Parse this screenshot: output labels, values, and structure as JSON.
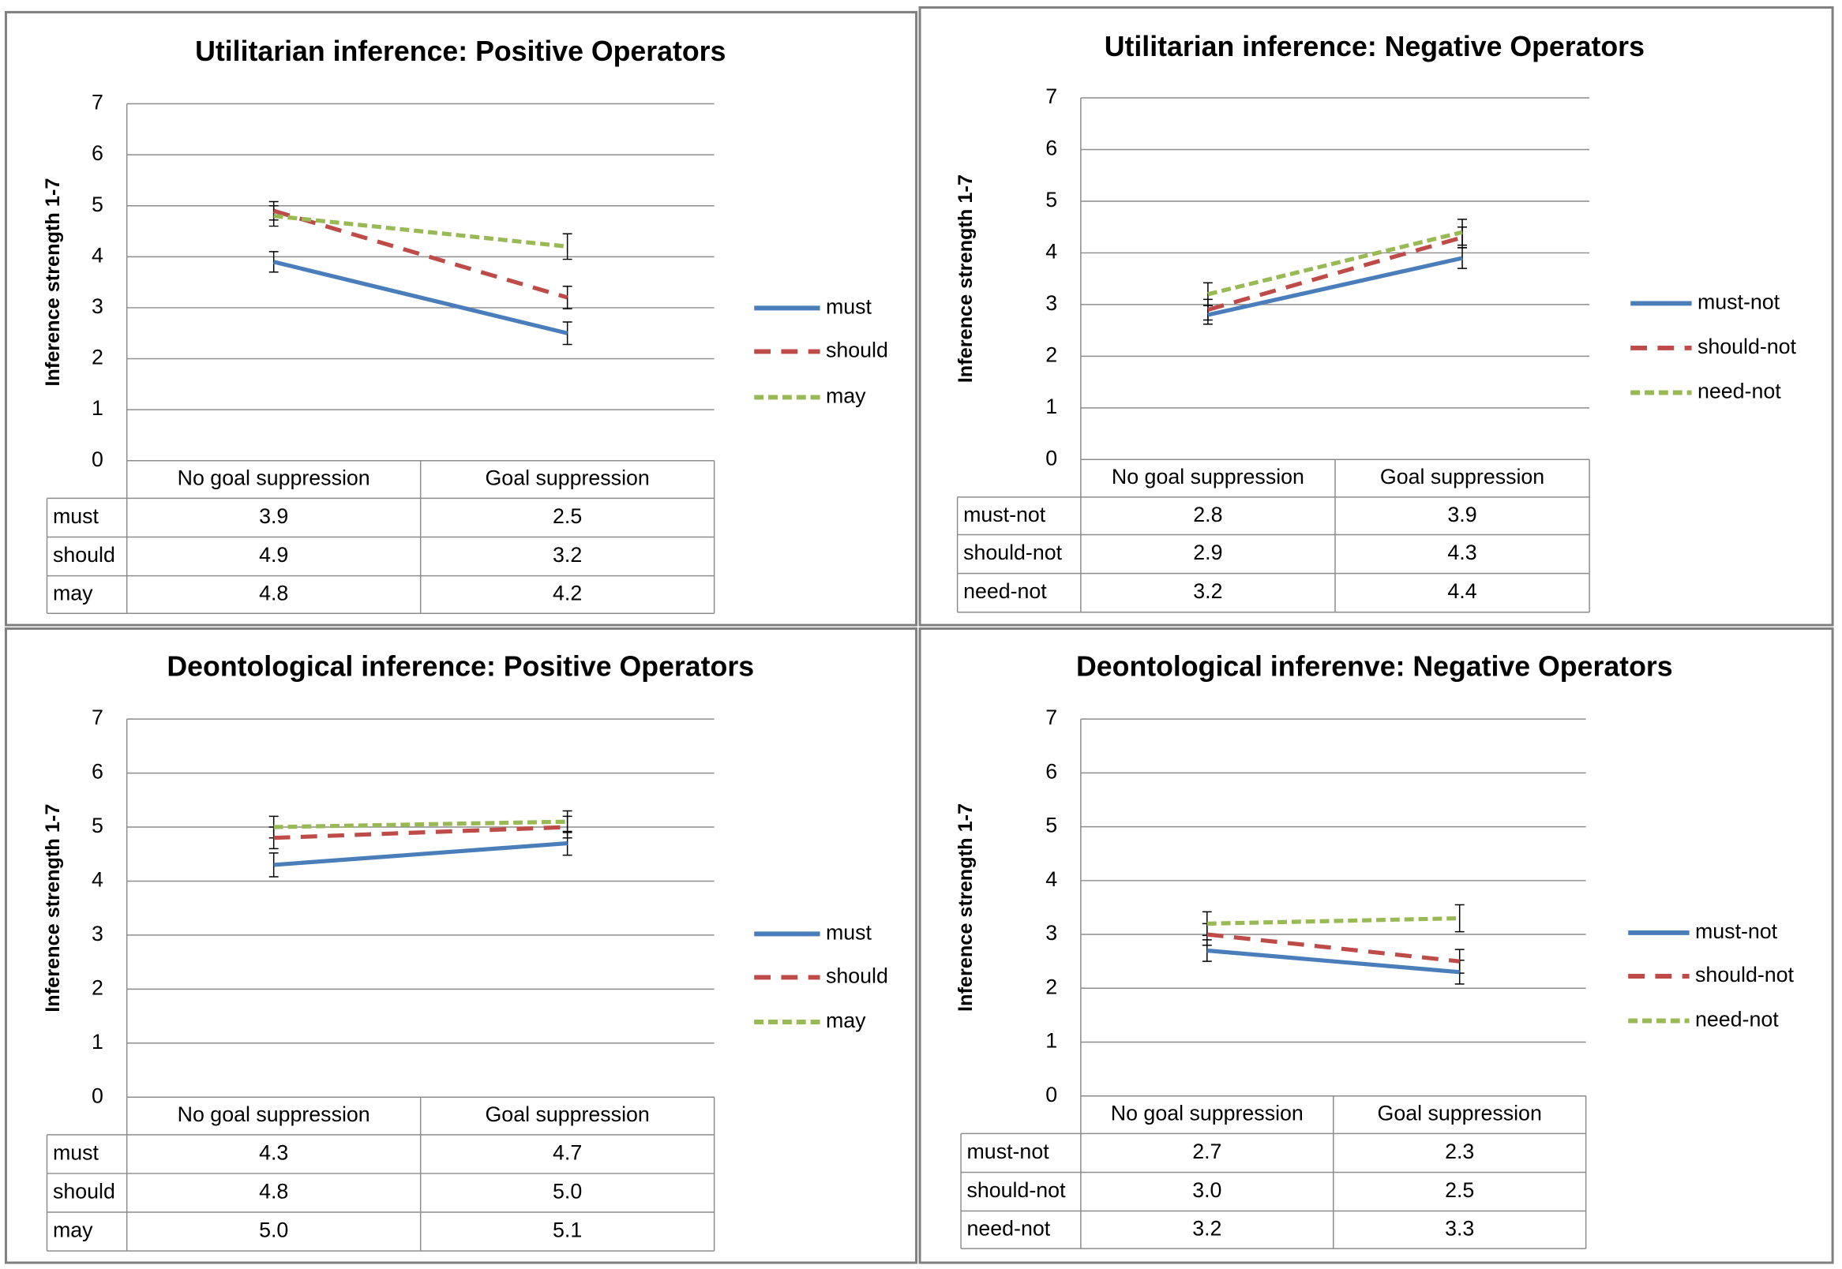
{
  "chart_data": [
    {
      "type": "line",
      "title": "Utilitarian inference: Positive Operators",
      "y_label": "Inference strength 1-7",
      "categories": [
        "No goal suppression",
        "Goal suppression"
      ],
      "series": [
        {
          "name": "must",
          "color": "#4a7ebb",
          "style": "solid",
          "values": [
            3.9,
            2.5
          ],
          "errors": [
            0.2,
            0.22
          ]
        },
        {
          "name": "should",
          "color": "#be4b48",
          "style": "dashed",
          "values": [
            4.9,
            3.2
          ],
          "errors": [
            0.18,
            0.22
          ]
        },
        {
          "name": "may",
          "color": "#98b954",
          "style": "dotted",
          "values": [
            4.8,
            4.2
          ],
          "errors": [
            0.2,
            0.25
          ]
        }
      ],
      "ylim": [
        0,
        7
      ],
      "yticks": [
        0,
        1,
        2,
        3,
        4,
        5,
        6,
        7
      ],
      "grid": true,
      "legend": "right"
    },
    {
      "type": "line",
      "title": "Utilitarian inference: Negative Operators",
      "y_label": "Inference strength 1-7",
      "categories": [
        "No goal suppression",
        "Goal suppression"
      ],
      "series": [
        {
          "name": "must-not",
          "color": "#4a7ebb",
          "style": "solid",
          "values": [
            2.8,
            3.9
          ],
          "errors": [
            0.18,
            0.2
          ]
        },
        {
          "name": "should-not",
          "color": "#be4b48",
          "style": "dashed",
          "values": [
            2.9,
            4.3
          ],
          "errors": [
            0.2,
            0.2
          ]
        },
        {
          "name": "need-not",
          "color": "#98b954",
          "style": "dotted",
          "values": [
            3.2,
            4.4
          ],
          "errors": [
            0.22,
            0.25
          ]
        }
      ],
      "ylim": [
        0,
        7
      ],
      "yticks": [
        0,
        1,
        2,
        3,
        4,
        5,
        6,
        7
      ],
      "grid": true,
      "legend": "right"
    },
    {
      "type": "line",
      "title": "Deontological inference: Positive Operators",
      "y_label": "Inference strength 1-7",
      "categories": [
        "No goal suppression",
        "Goal suppression"
      ],
      "series": [
        {
          "name": "must",
          "color": "#4a7ebb",
          "style": "solid",
          "values": [
            4.3,
            4.7
          ],
          "errors": [
            0.22,
            0.22
          ]
        },
        {
          "name": "should",
          "color": "#be4b48",
          "style": "dashed",
          "values": [
            4.8,
            5.0
          ],
          "value_labels": [
            "4.8",
            "5.0"
          ],
          "errors": [
            0.2,
            0.2
          ]
        },
        {
          "name": "may",
          "color": "#98b954",
          "style": "dotted",
          "values": [
            5.0,
            5.1
          ],
          "value_labels": [
            "5.0",
            "5.1"
          ],
          "errors": [
            0.2,
            0.2
          ]
        }
      ],
      "ylim": [
        0,
        7
      ],
      "yticks": [
        0,
        1,
        2,
        3,
        4,
        5,
        6,
        7
      ],
      "grid": true,
      "legend": "right"
    },
    {
      "type": "line",
      "title": "Deontological inferenve: Negative Operators",
      "y_label": "Inference strength 1-7",
      "categories": [
        "No goal suppression",
        "Goal suppression"
      ],
      "series": [
        {
          "name": "must-not",
          "color": "#4a7ebb",
          "style": "solid",
          "values": [
            2.7,
            2.3
          ],
          "errors": [
            0.2,
            0.22
          ]
        },
        {
          "name": "should-not",
          "color": "#be4b48",
          "style": "dashed",
          "values": [
            3.0,
            2.5
          ],
          "value_labels": [
            "3.0",
            "2.5"
          ],
          "errors": [
            0.2,
            0.22
          ]
        },
        {
          "name": "need-not",
          "color": "#98b954",
          "style": "dotted",
          "values": [
            3.2,
            3.3
          ],
          "errors": [
            0.22,
            0.25
          ]
        }
      ],
      "ylim": [
        0,
        7
      ],
      "yticks": [
        0,
        1,
        2,
        3,
        4,
        5,
        6,
        7
      ],
      "grid": true,
      "legend": "right"
    }
  ]
}
